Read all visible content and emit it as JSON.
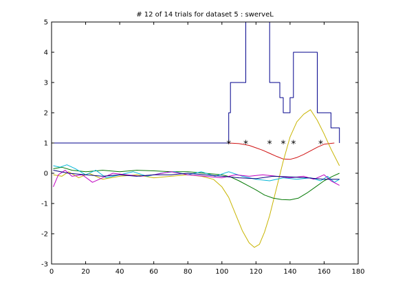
{
  "chart_data": {
    "type": "line",
    "title": "# 12 of 14 trials for dataset 5 : swerveL",
    "xlabel": "",
    "ylabel": "",
    "xlim": [
      0,
      180
    ],
    "ylim": [
      -3,
      5
    ],
    "xticks": [
      0,
      20,
      40,
      60,
      80,
      100,
      120,
      140,
      160,
      180
    ],
    "yticks": [
      -3,
      -2,
      -1,
      0,
      1,
      2,
      3,
      4,
      5
    ],
    "grid": false,
    "colors": {
      "blue": "#00008b",
      "red": "#d01010",
      "green": "#007700",
      "yellow": "#c8b400",
      "cyan": "#00b5d6",
      "magenta": "#c000c0",
      "navy": "#00007a",
      "marker": "#000000"
    },
    "markers": {
      "symbol": "*",
      "x": [
        104,
        114,
        128,
        136,
        142,
        158
      ],
      "y": [
        1,
        1,
        1,
        1,
        1,
        1
      ]
    },
    "series": [
      {
        "color": "blue",
        "step": true,
        "x": [
          1,
          104,
          104,
          105,
          105,
          114,
          114,
          122,
          122,
          126,
          126,
          128,
          128,
          134,
          134,
          136,
          136,
          140,
          140,
          142,
          142,
          156,
          156,
          164,
          164,
          169,
          169
        ],
        "y": [
          1,
          1,
          2,
          2,
          3,
          3,
          5.2,
          5.2,
          5.2,
          5.2,
          5.2,
          5.2,
          3,
          3,
          2.5,
          2.5,
          2,
          2,
          2.5,
          2.5,
          4,
          4,
          2,
          2,
          1.5,
          1.5,
          1
        ]
      },
      {
        "color": "red",
        "x": [
          104,
          110,
          116,
          120,
          124,
          128,
          132,
          136,
          140,
          144,
          148,
          152,
          156,
          160,
          166
        ],
        "y": [
          1,
          0.98,
          0.92,
          0.84,
          0.76,
          0.66,
          0.56,
          0.47,
          0.46,
          0.52,
          0.62,
          0.74,
          0.86,
          0.96,
          1
        ]
      },
      {
        "color": "yellow",
        "x": [
          1,
          6,
          10,
          16,
          22,
          30,
          40,
          50,
          60,
          70,
          80,
          88,
          95,
          100,
          104,
          108,
          112,
          116,
          119,
          122,
          125,
          128,
          132,
          136,
          140,
          144,
          148,
          152,
          156,
          160,
          164,
          169
        ],
        "y": [
          -0.05,
          -0.1,
          0.05,
          -0.15,
          0,
          -0.2,
          -0.1,
          -0.05,
          -0.15,
          -0.1,
          -0.05,
          -0.1,
          -0.2,
          -0.45,
          -0.8,
          -1.35,
          -1.9,
          -2.3,
          -2.45,
          -2.35,
          -1.95,
          -1.4,
          -0.5,
          0.4,
          1.2,
          1.7,
          1.95,
          2.1,
          1.75,
          1.3,
          0.8,
          0.25
        ]
      },
      {
        "color": "green",
        "x": [
          1,
          6,
          12,
          20,
          30,
          40,
          50,
          60,
          70,
          80,
          90,
          100,
          105,
          110,
          115,
          120,
          125,
          130,
          135,
          140,
          145,
          150,
          155,
          160,
          165,
          169
        ],
        "y": [
          0.15,
          0.2,
          0.1,
          0.05,
          0.1,
          0.05,
          0.1,
          0.08,
          0.05,
          0.05,
          0,
          -0.05,
          -0.12,
          -0.25,
          -0.4,
          -0.55,
          -0.72,
          -0.82,
          -0.87,
          -0.88,
          -0.82,
          -0.65,
          -0.45,
          -0.25,
          -0.1,
          0
        ]
      },
      {
        "color": "cyan",
        "x": [
          1,
          5,
          9,
          14,
          20,
          26,
          32,
          40,
          48,
          56,
          64,
          72,
          80,
          88,
          96,
          104,
          112,
          120,
          128,
          136,
          144,
          152,
          158,
          162,
          166,
          169
        ],
        "y": [
          0.25,
          0.2,
          0.28,
          0.15,
          -0.05,
          0.1,
          -0.15,
          -0.05,
          0.05,
          -0.1,
          0,
          0.05,
          -0.05,
          0.05,
          -0.1,
          0.05,
          -0.1,
          -0.2,
          -0.25,
          -0.15,
          -0.2,
          -0.15,
          -0.25,
          -0.1,
          -0.3,
          -0.2
        ]
      },
      {
        "color": "magenta",
        "x": [
          1,
          4,
          8,
          12,
          18,
          24,
          30,
          36,
          44,
          52,
          60,
          70,
          80,
          90,
          100,
          108,
          116,
          124,
          132,
          140,
          148,
          154,
          160,
          164,
          169
        ],
        "y": [
          -0.45,
          -0.05,
          0.1,
          -0.1,
          -0.05,
          -0.3,
          -0.15,
          0,
          -0.05,
          -0.1,
          -0.05,
          0.05,
          -0.05,
          -0.1,
          -0.15,
          -0.05,
          -0.1,
          -0.05,
          -0.1,
          -0.15,
          -0.1,
          -0.2,
          -0.05,
          -0.25,
          -0.4
        ]
      },
      {
        "color": "navy",
        "x": [
          1,
          10,
          20,
          30,
          40,
          50,
          60,
          70,
          80,
          90,
          100,
          110,
          120,
          130,
          140,
          150,
          160,
          169
        ],
        "y": [
          0.1,
          0,
          -0.05,
          -0.1,
          -0.05,
          -0.1,
          -0.05,
          -0.05,
          0,
          -0.05,
          -0.1,
          -0.15,
          -0.18,
          -0.1,
          -0.12,
          -0.15,
          -0.2,
          -0.2
        ]
      }
    ]
  }
}
